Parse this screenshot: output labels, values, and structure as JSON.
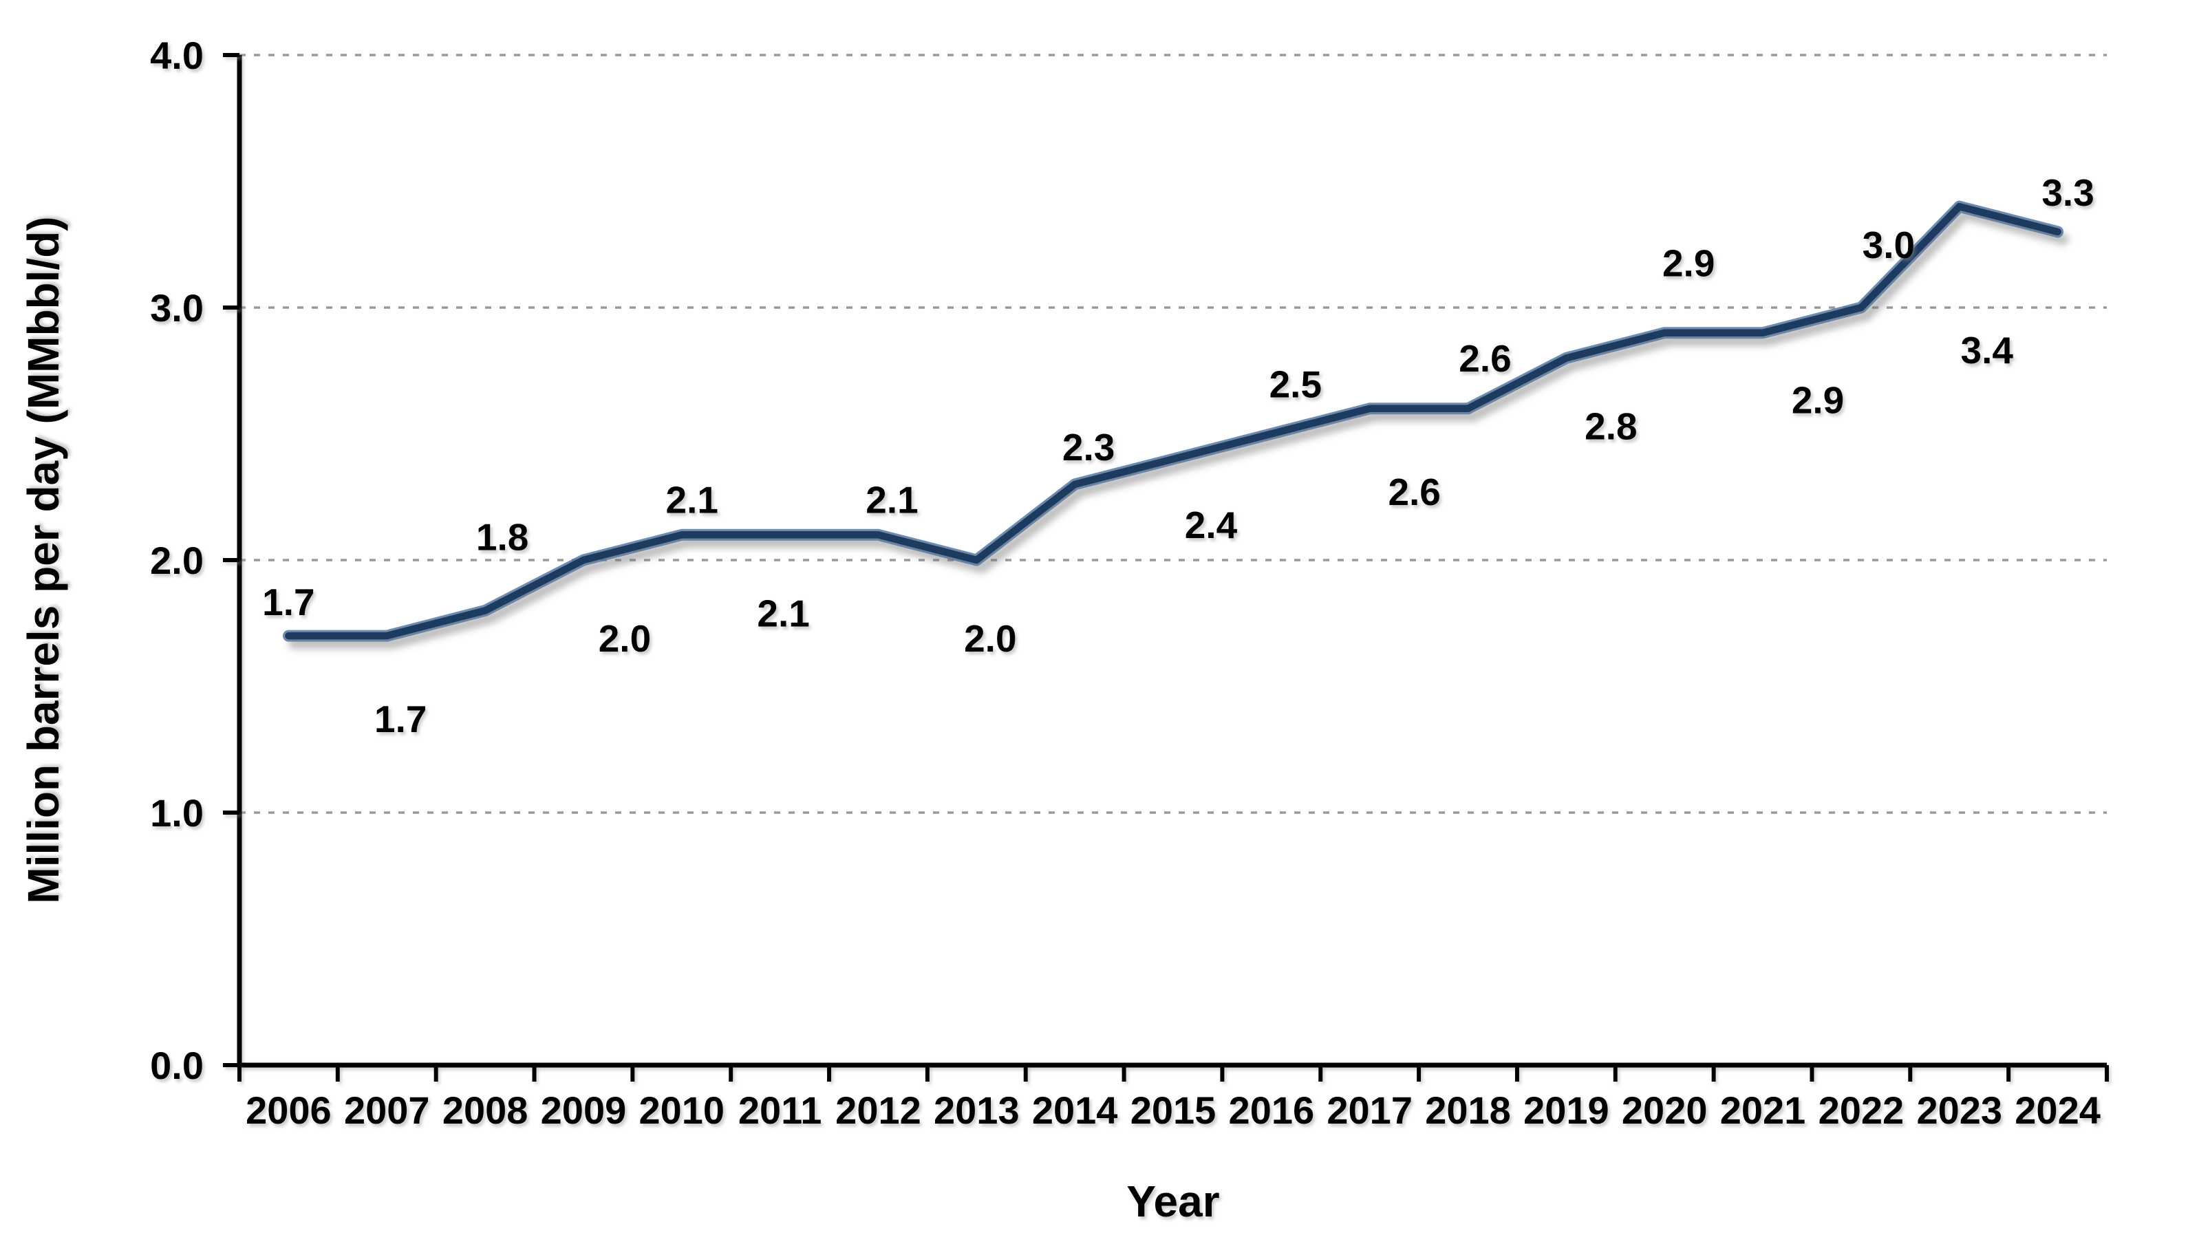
{
  "chart_data": {
    "type": "line",
    "title": "",
    "xlabel": "Year",
    "ylabel": "Million barrels per day (MMbbl/d)",
    "categories": [
      "2006",
      "2007",
      "2008",
      "2009",
      "2010",
      "2011",
      "2012",
      "2013",
      "2014",
      "2015",
      "2016",
      "2017",
      "2018",
      "2019",
      "2020",
      "2021",
      "2022",
      "2023",
      "2024"
    ],
    "values": [
      1.7,
      1.7,
      1.8,
      2.0,
      2.1,
      2.1,
      2.1,
      2.0,
      2.3,
      2.4,
      2.5,
      2.6,
      2.6,
      2.8,
      2.9,
      2.9,
      3.0,
      3.4,
      3.3
    ],
    "data_labels": [
      "1.7",
      "1.7",
      "1.8",
      "2.0",
      "2.1",
      "2.1",
      "2.1",
      "2.0",
      "2.3",
      "2.4",
      "2.5",
      "2.6",
      "2.6",
      "2.8",
      "2.9",
      "2.9",
      "3.0",
      "3.4",
      "3.3"
    ],
    "ylim": [
      0.0,
      4.0
    ],
    "yticks": [
      "0.0",
      "1.0",
      "2.0",
      "3.0",
      "4.0"
    ],
    "grid": "horizontal-dashed",
    "legend_position": "none",
    "colors": {
      "line": "#1F3A5F",
      "line_halo": "#56779F",
      "text": "#000000",
      "grid": "#9A9A9A",
      "axis": "#000000"
    },
    "label_layout": {
      "positions": [
        "above",
        "below",
        "above",
        "below",
        "above",
        "below",
        "above",
        "below",
        "above",
        "below",
        "above",
        "below",
        "above",
        "below",
        "above",
        "below",
        "above",
        "below",
        "above"
      ],
      "dx": [
        0,
        20,
        25,
        60,
        15,
        5,
        20,
        20,
        20,
        55,
        35,
        65,
        25,
        65,
        35,
        80,
        40,
        40,
        15
      ],
      "dy": [
        -30,
        140,
        -88,
        133,
        -32,
        133,
        -32,
        133,
        -35,
        115,
        -53,
        140,
        -54,
        118,
        -82,
        117,
        -72,
        228,
        -38
      ]
    }
  }
}
